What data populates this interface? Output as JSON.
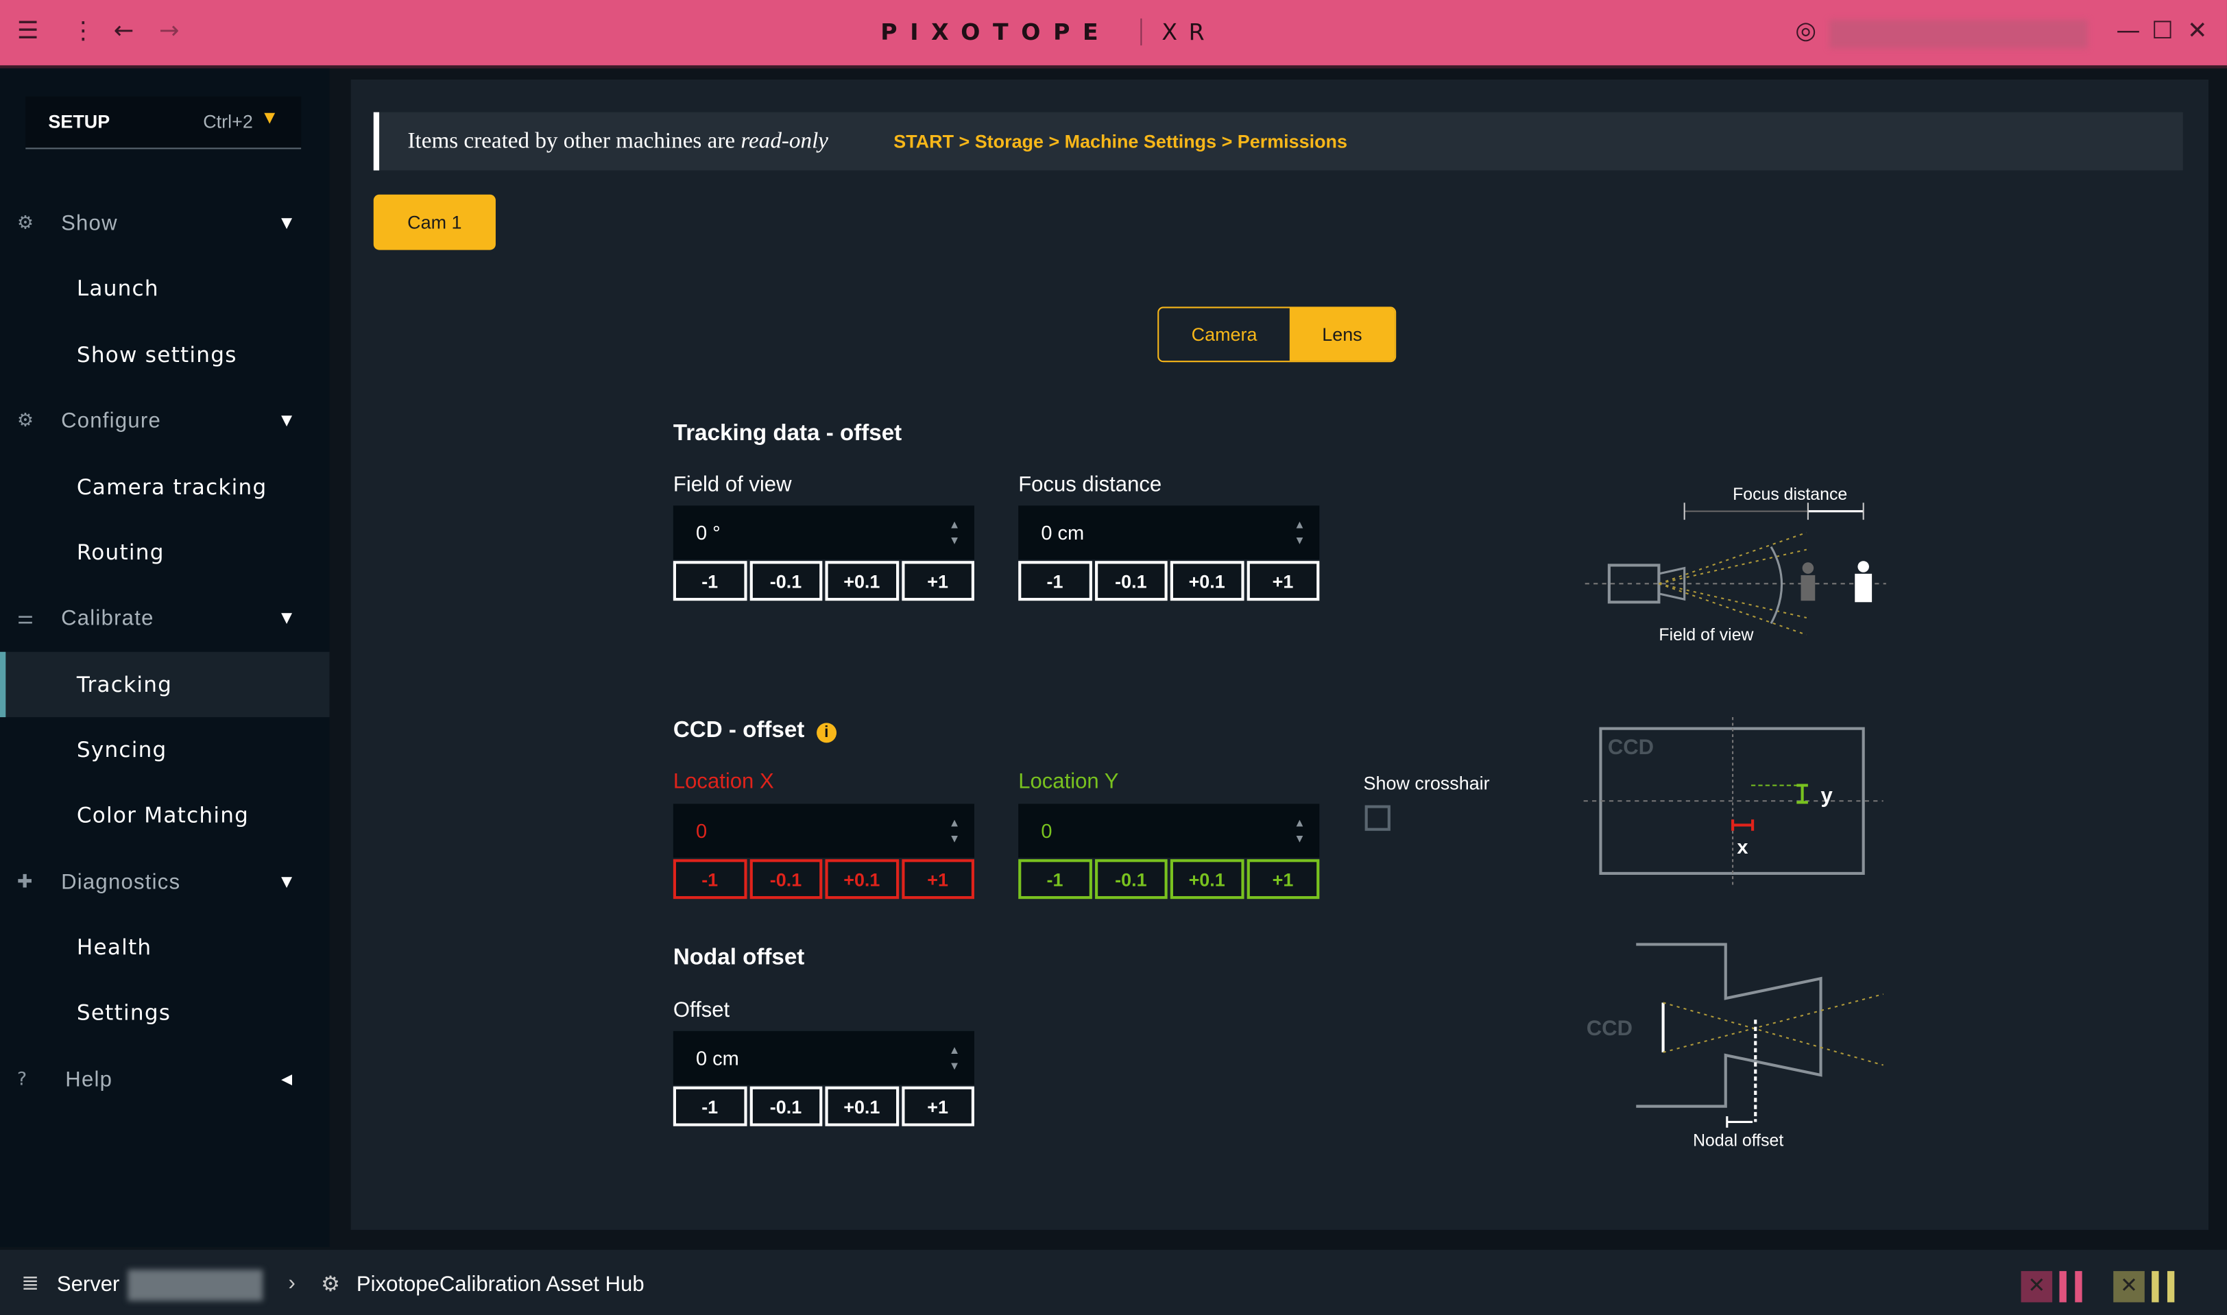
{
  "titlebar": {
    "logo": "PIXOTOPE",
    "product": "XR",
    "icons": [
      "sidebar-toggle-icon",
      "more-vert-icon",
      "back-arrow-icon",
      "forward-arrow-icon",
      "user-icon",
      "minimize-icon",
      "maximize-icon",
      "close-icon"
    ]
  },
  "sidebar": {
    "mode": "SETUP",
    "shortcut": "Ctrl+2",
    "groups": [
      {
        "label": "Show",
        "icon": "show-icon",
        "items": [
          "Launch",
          "Show settings"
        ]
      },
      {
        "label": "Configure",
        "icon": "gear-icon",
        "items": [
          "Camera tracking",
          "Routing"
        ]
      },
      {
        "label": "Calibrate",
        "icon": "sliders-icon",
        "items": [
          "Tracking",
          "Syncing",
          "Color Matching"
        ]
      },
      {
        "label": "Diagnostics",
        "icon": "diagnostics-icon",
        "items": [
          "Health",
          "Settings"
        ]
      },
      {
        "label": "Help",
        "icon": "help-icon",
        "items": []
      }
    ],
    "active": "Tracking"
  },
  "banner": {
    "text": "Items created by other machines are ",
    "emph": "read-only",
    "breadcrumb": "START > Storage > Machine Settings > Permissions"
  },
  "camera_button": "Cam 1",
  "tabs": {
    "camera": "Camera",
    "lens": "Lens",
    "active": "Lens"
  },
  "tracking": {
    "title": "Tracking data - offset",
    "fov": {
      "label": "Field of view",
      "value": "0 °"
    },
    "focus": {
      "label": "Focus distance",
      "value": "0 cm"
    }
  },
  "ccd": {
    "title": "CCD - offset",
    "x": {
      "label": "Location X",
      "value": "0"
    },
    "y": {
      "label": "Location Y",
      "value": "0"
    },
    "crosshair": {
      "label": "Show crosshair",
      "checked": false
    }
  },
  "nodal": {
    "title": "Nodal offset",
    "offset": {
      "label": "Offset",
      "value": "0 cm"
    }
  },
  "steps": [
    "-1",
    "-0.1",
    "+0.1",
    "+1"
  ],
  "diagrams": {
    "focus_distance": "Focus distance",
    "field_of_view": "Field of view",
    "ccd": "CCD",
    "x": "x",
    "y": "y",
    "nodal_offset": "Nodal offset"
  },
  "statusbar": {
    "server": "Server",
    "project": "PixotopeCalibration Asset Hub"
  },
  "colors": {
    "accent": "#f8b719",
    "titlebar": "#e0537e",
    "x_axis": "#e0231b",
    "y_axis": "#79c21f"
  }
}
